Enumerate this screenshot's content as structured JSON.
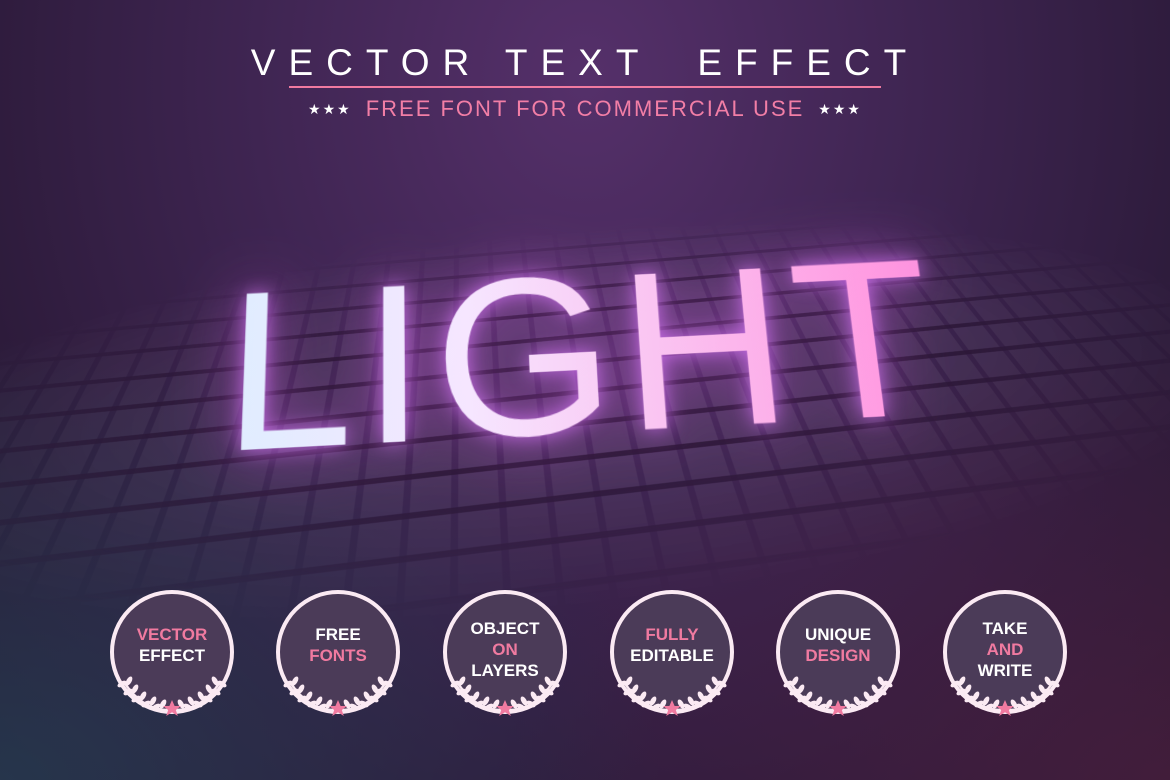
{
  "header": {
    "title": "VECTOR TEXT  EFFECT",
    "subtitle": "FREE FONT FOR COMMERCIAL USE",
    "stars_left": "★★★",
    "stars_right": "★★★"
  },
  "hero": {
    "word": "LIGHT"
  },
  "colors": {
    "accent": "#f07aa0",
    "background": "#3f2552",
    "badge_fill": "#4b3b58"
  },
  "badges": [
    {
      "lines": [
        {
          "text": "VECTOR",
          "accent": true
        },
        {
          "text": "EFFECT",
          "accent": false
        }
      ]
    },
    {
      "lines": [
        {
          "text": "FREE",
          "accent": false
        },
        {
          "text": "FONTS",
          "accent": true
        }
      ]
    },
    {
      "lines": [
        {
          "text": "OBJECT",
          "accent": false
        },
        {
          "text": "ON",
          "accent": true
        },
        {
          "text": "LAYERS",
          "accent": false
        }
      ]
    },
    {
      "lines": [
        {
          "text": "FULLY",
          "accent": true
        },
        {
          "text": "EDITABLE",
          "accent": false
        }
      ]
    },
    {
      "lines": [
        {
          "text": "UNIQUE",
          "accent": false
        },
        {
          "text": "DESIGN",
          "accent": true
        }
      ]
    },
    {
      "lines": [
        {
          "text": "TAKE",
          "accent": false
        },
        {
          "text": "AND",
          "accent": true
        },
        {
          "text": "WRITE",
          "accent": false
        }
      ]
    }
  ]
}
